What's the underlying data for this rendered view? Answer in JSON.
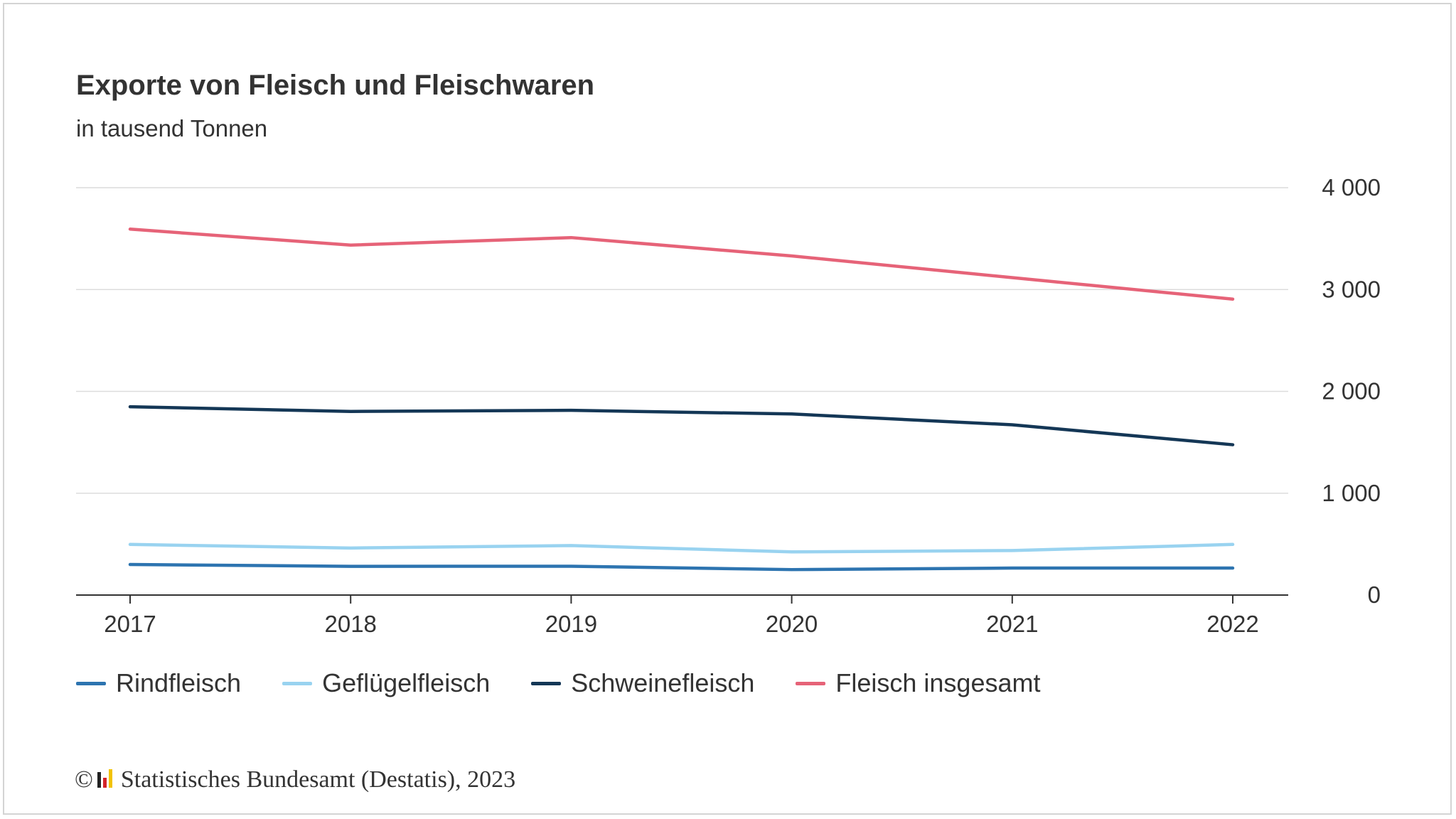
{
  "title": "Exporte von Fleisch und Fleischwaren",
  "subtitle": "in tausend Tonnen",
  "source": {
    "copyright": "©",
    "text": "Statistisches Bundesamt (Destatis), 2023",
    "logo_icon": "destatis-logo-icon"
  },
  "chart_data": {
    "type": "line",
    "title": "Exporte von Fleisch und Fleischwaren",
    "subtitle": "in tausend Tonnen",
    "x": [
      "2017",
      "2018",
      "2019",
      "2020",
      "2021",
      "2022"
    ],
    "y_ticks": [
      0,
      1000,
      2000,
      3000,
      4000
    ],
    "y_tick_labels": [
      "0",
      "1 000",
      "2 000",
      "3 000",
      "4 000"
    ],
    "ylim": [
      0,
      4000
    ],
    "y_axis_position": "right",
    "grid": true,
    "legend_position": "bottom-left",
    "series": [
      {
        "name": "Rindfleisch",
        "color": "#2d74b0",
        "values": [
          300,
          282,
          283,
          250,
          265,
          265
        ]
      },
      {
        "name": "Geflügelfleisch",
        "color": "#99d3f0",
        "values": [
          497,
          462,
          486,
          424,
          437,
          497
        ]
      },
      {
        "name": "Schweinefleisch",
        "color": "#143756",
        "values": [
          1849,
          1803,
          1814,
          1778,
          1672,
          1476
        ]
      },
      {
        "name": "Fleisch insgesamt",
        "color": "#e66378",
        "values": [
          3593,
          3436,
          3510,
          3330,
          3117,
          2906
        ]
      }
    ]
  }
}
